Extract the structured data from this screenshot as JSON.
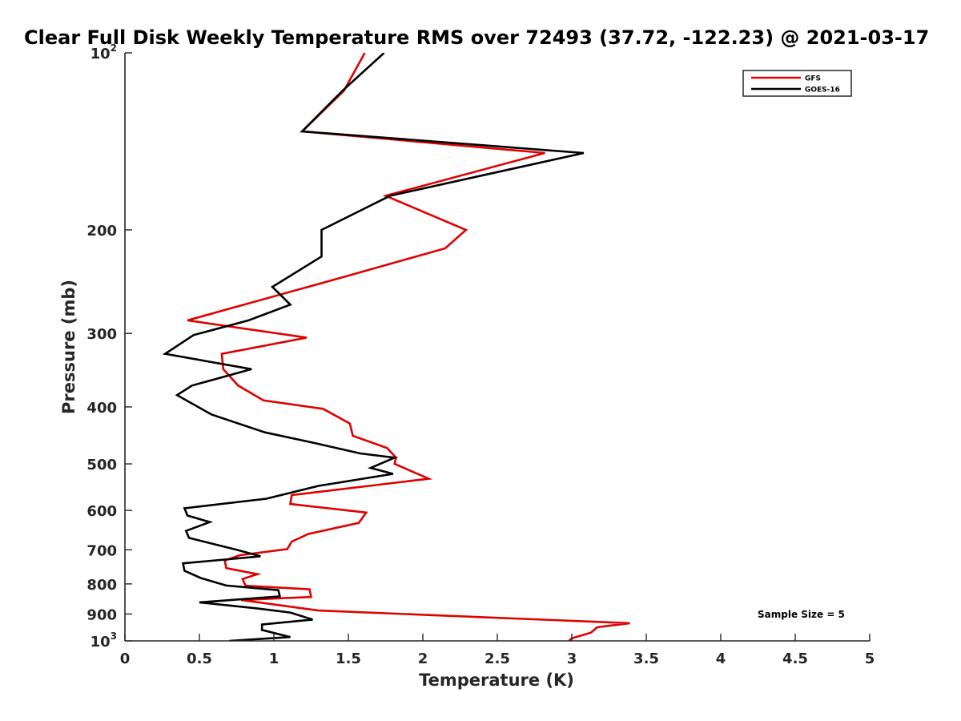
{
  "chart_data": {
    "type": "line",
    "title": "Clear Full Disk Weekly Temperature RMS over 72493 (37.72, -122.23) @ 2021-03-17",
    "xlabel": "Temperature (K)",
    "ylabel": "Pressure (mb)",
    "xlim": [
      0,
      5
    ],
    "ylim": [
      1000,
      100
    ],
    "y_scale": "log",
    "y_reversed": true,
    "grid": false,
    "legend_position": "top-right",
    "x_ticks": [
      "0",
      "0.5",
      "1",
      "1.5",
      "2",
      "2.5",
      "3",
      "3.5",
      "4",
      "4.5",
      "5"
    ],
    "x_tick_values": [
      0,
      0.5,
      1,
      1.5,
      2,
      2.5,
      3,
      3.5,
      4,
      4.5,
      5
    ],
    "y_ticks": [
      {
        "value": 100,
        "base": "10",
        "exp": "2"
      },
      {
        "value": 200,
        "label": "200"
      },
      {
        "value": 300,
        "label": "300"
      },
      {
        "value": 400,
        "label": "400"
      },
      {
        "value": 500,
        "label": "500"
      },
      {
        "value": 600,
        "label": "600"
      },
      {
        "value": 700,
        "label": "700"
      },
      {
        "value": 800,
        "label": "800"
      },
      {
        "value": 900,
        "label": "900"
      },
      {
        "value": 1000,
        "base": "10",
        "exp": "3"
      }
    ],
    "annotation": "Sample Size = 5",
    "series": [
      {
        "name": "GFS",
        "color": "#e00000",
        "points": [
          [
            1.61,
            100
          ],
          [
            1.47,
            116
          ],
          [
            1.19,
            136
          ],
          [
            2.82,
            148
          ],
          [
            1.75,
            175
          ],
          [
            2.29,
            200
          ],
          [
            2.15,
            215
          ],
          [
            1.43,
            242
          ],
          [
            0.42,
            285
          ],
          [
            1.22,
            305
          ],
          [
            0.65,
            325
          ],
          [
            0.66,
            345
          ],
          [
            0.76,
            368
          ],
          [
            0.93,
            390
          ],
          [
            1.33,
            403
          ],
          [
            1.51,
            427
          ],
          [
            1.53,
            448
          ],
          [
            1.76,
            470
          ],
          [
            1.82,
            488
          ],
          [
            1.81,
            500
          ],
          [
            2.04,
            530
          ],
          [
            1.12,
            565
          ],
          [
            1.11,
            585
          ],
          [
            1.62,
            605
          ],
          [
            1.57,
            630
          ],
          [
            1.23,
            658
          ],
          [
            1.12,
            678
          ],
          [
            1.09,
            698
          ],
          [
            0.77,
            715
          ],
          [
            0.67,
            730
          ],
          [
            0.68,
            752
          ],
          [
            0.89,
            770
          ],
          [
            0.79,
            785
          ],
          [
            0.81,
            806
          ],
          [
            1.24,
            817
          ],
          [
            1.25,
            842
          ],
          [
            0.78,
            852
          ],
          [
            1.3,
            888
          ],
          [
            3.39,
            933
          ],
          [
            3.17,
            948
          ],
          [
            3.13,
            968
          ],
          [
            3.0,
            990
          ],
          [
            2.98,
            1000
          ]
        ]
      },
      {
        "name": "GOES-16",
        "color": "#000000",
        "points": [
          [
            1.74,
            100
          ],
          [
            1.46,
            116
          ],
          [
            1.19,
            136
          ],
          [
            3.08,
            148
          ],
          [
            1.78,
            175
          ],
          [
            1.32,
            200
          ],
          [
            1.32,
            222
          ],
          [
            0.99,
            250
          ],
          [
            1.11,
            268
          ],
          [
            0.83,
            285
          ],
          [
            0.46,
            302
          ],
          [
            0.27,
            325
          ],
          [
            0.85,
            345
          ],
          [
            0.45,
            368
          ],
          [
            0.35,
            382
          ],
          [
            0.58,
            412
          ],
          [
            0.94,
            442
          ],
          [
            1.26,
            460
          ],
          [
            1.58,
            480
          ],
          [
            1.81,
            488
          ],
          [
            1.65,
            508
          ],
          [
            1.8,
            520
          ],
          [
            1.3,
            545
          ],
          [
            0.95,
            573
          ],
          [
            0.4,
            595
          ],
          [
            0.42,
            612
          ],
          [
            0.57,
            628
          ],
          [
            0.41,
            650
          ],
          [
            0.43,
            668
          ],
          [
            0.75,
            700
          ],
          [
            0.91,
            718
          ],
          [
            0.39,
            738
          ],
          [
            0.4,
            760
          ],
          [
            0.51,
            782
          ],
          [
            0.68,
            805
          ],
          [
            1.03,
            820
          ],
          [
            1.04,
            840
          ],
          [
            0.5,
            860
          ],
          [
            0.88,
            880
          ],
          [
            1.11,
            895
          ],
          [
            1.26,
            920
          ],
          [
            0.92,
            938
          ],
          [
            0.92,
            958
          ],
          [
            1.11,
            985
          ],
          [
            0.7,
            1000
          ]
        ]
      }
    ]
  }
}
